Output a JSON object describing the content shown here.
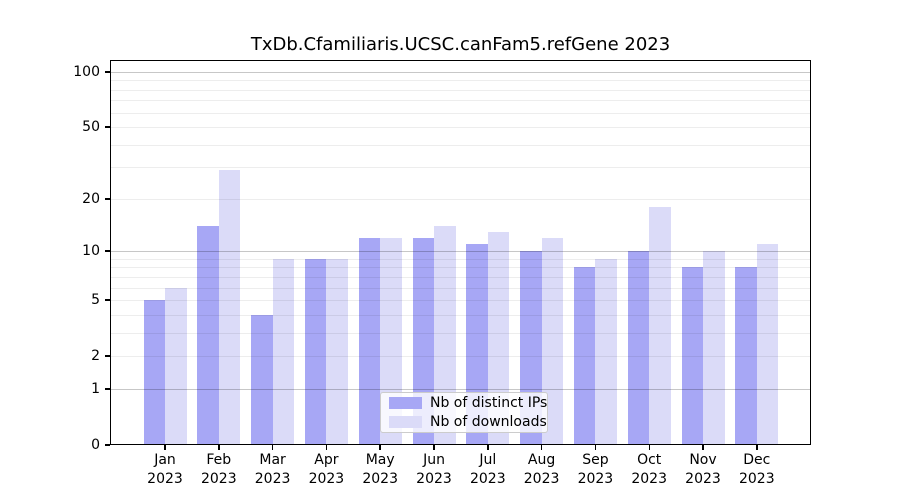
{
  "chart_data": {
    "type": "bar",
    "title": "TxDb.Cfamiliaris.UCSC.canFam5.refGene 2023",
    "categories": [
      "Jan",
      "Feb",
      "Mar",
      "Apr",
      "May",
      "Jun",
      "Jul",
      "Aug",
      "Sep",
      "Oct",
      "Nov",
      "Dec"
    ],
    "year_label": "2023",
    "series": [
      {
        "name": "Nb of distinct IPs",
        "color": "#a7a7f5",
        "values": [
          5,
          14,
          4,
          9,
          12,
          12,
          11,
          10,
          8,
          10,
          8,
          8
        ]
      },
      {
        "name": "Nb of downloads",
        "color": "#dbdbf8",
        "values": [
          6,
          29,
          9,
          9,
          12,
          14,
          13,
          12,
          9,
          18,
          10,
          11
        ]
      }
    ],
    "xlabel": "",
    "ylabel": "",
    "yscale": "log1p",
    "ylim": [
      0,
      116
    ],
    "ytick_values": [
      0,
      1,
      2,
      5,
      10,
      20,
      50,
      100
    ],
    "major_gridlines": [
      1,
      10,
      100
    ],
    "minor_gridlines": [
      2,
      3,
      4,
      5,
      6,
      7,
      8,
      9,
      20,
      30,
      40,
      50,
      60,
      70,
      80,
      90
    ],
    "grid": "on",
    "legend_position": "lower center",
    "background_color": "#ffffff"
  }
}
